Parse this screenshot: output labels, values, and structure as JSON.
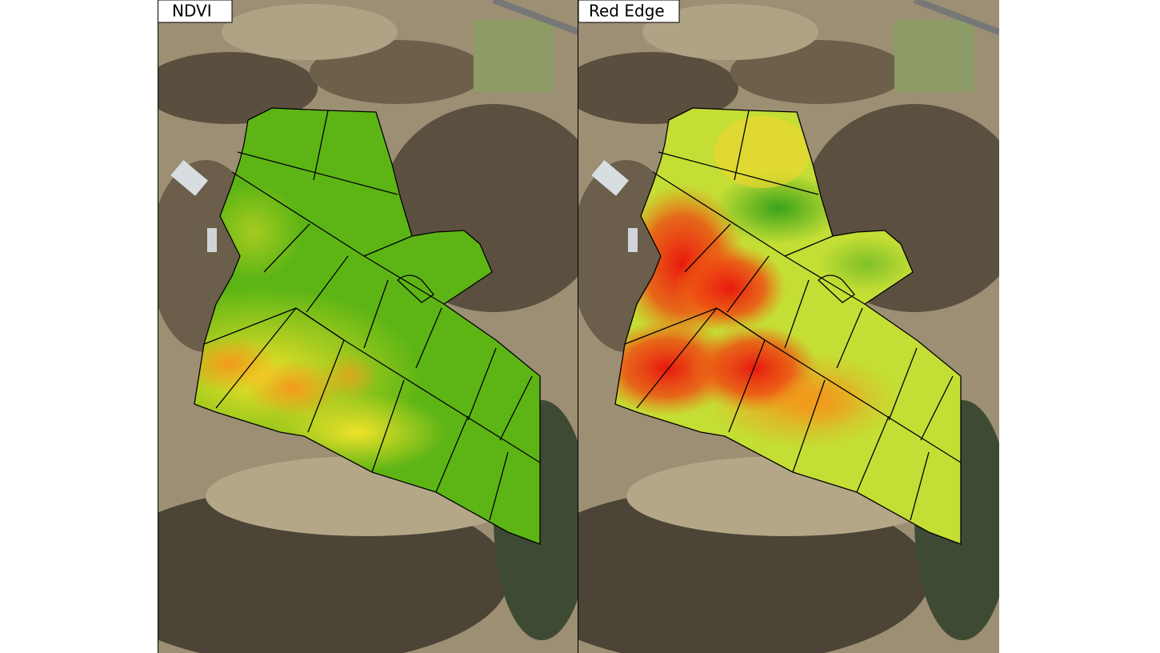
{
  "panels": [
    {
      "label": "NDVI"
    },
    {
      "label": "Red Edge"
    }
  ]
}
